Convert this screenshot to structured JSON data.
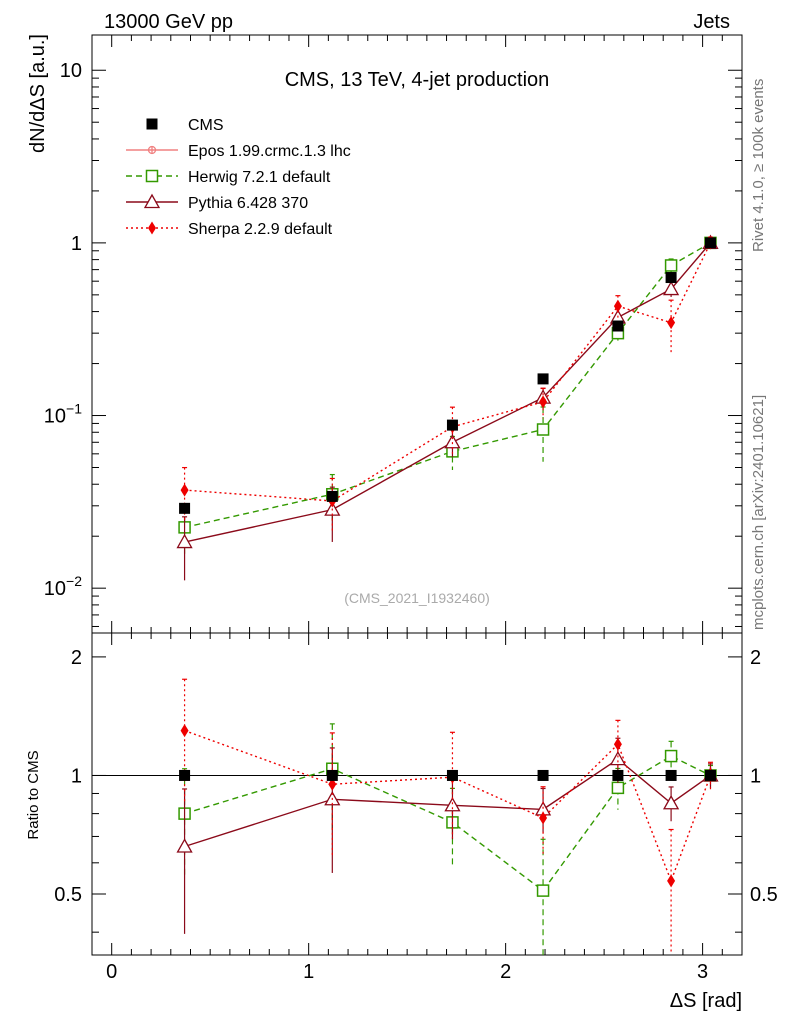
{
  "header": {
    "left": "13000 GeV pp",
    "right": "Jets"
  },
  "side": {
    "rivet": "Rivet 4.1.0, ≥ 100k events",
    "mcplots": "mcplots.cern.ch [arXiv:2401.10621]"
  },
  "chart_data": {
    "type": "scatter",
    "title": "CMS, 13 TeV, 4-jet production",
    "watermark": "(CMS_2021_I1932460)",
    "xlabel": "ΔS [rad]",
    "ylabel_main": "dN/dΔS [a.u.]",
    "ylabel_ratio": "Ratio to CMS",
    "xlim": [
      -0.1,
      3.2
    ],
    "ylim_main": [
      0.0055,
      16
    ],
    "ylim_ratio": [
      0.35,
      2.3
    ],
    "yscale_main": "log",
    "yscale_ratio": "log",
    "x_ticks": [
      "0",
      "1",
      "2",
      "3"
    ],
    "ratio_ticks": [
      "0.5",
      "1",
      "2"
    ],
    "main_ticks": [
      {
        "v": 0.01,
        "base": "10",
        "exp": "−2"
      },
      {
        "v": 0.1,
        "base": "10",
        "exp": "−1"
      },
      {
        "v": 1,
        "base": "1",
        "exp": ""
      },
      {
        "v": 10,
        "base": "10",
        "exp": ""
      }
    ],
    "x": [
      0.37,
      1.12,
      1.73,
      2.19,
      2.57,
      2.84,
      3.04
    ],
    "series": [
      {
        "name": "CMS",
        "color": "#000000",
        "marker": "square-filled",
        "style": "none",
        "values": [
          0.029,
          0.034,
          0.088,
          0.163,
          0.33,
          0.63,
          1.0
        ],
        "ratio": [
          1,
          1,
          1,
          1,
          1,
          1,
          1
        ],
        "err": [
          0,
          0,
          0,
          0,
          0,
          0,
          0
        ]
      },
      {
        "name": "Epos 1.99.crmc.1.3 lhc",
        "color": "#f08080",
        "marker": "cross",
        "style": "solid",
        "values": [],
        "ratio": [],
        "err": []
      },
      {
        "name": "Herwig 7.2.1 default",
        "color": "#339900",
        "marker": "square-open",
        "style": "dashed",
        "values": [
          0.0225,
          0.035,
          0.062,
          0.083,
          0.3,
          0.74,
          1.0
        ],
        "ratio": [
          0.8,
          1.04,
          0.76,
          0.51,
          0.93,
          1.12,
          1.0
        ],
        "err": [
          0.3,
          0.3,
          0.22,
          0.35,
          0.12,
          0.09,
          0.06
        ]
      },
      {
        "name": "Pythia 6.428 370",
        "color": "#8b0a1a",
        "marker": "triangle-open",
        "style": "solid",
        "values": [
          0.0185,
          0.0285,
          0.07,
          0.127,
          0.37,
          0.54,
          1.0
        ],
        "ratio": [
          0.66,
          0.87,
          0.84,
          0.82,
          1.1,
          0.85,
          1.0
        ],
        "err": [
          0.4,
          0.35,
          0.18,
          0.13,
          0.13,
          0.1,
          0.07
        ]
      },
      {
        "name": "Sherpa 2.2.9 default",
        "color": "#ee0000",
        "marker": "diamond-filled",
        "style": "dotted",
        "values": [
          0.037,
          0.032,
          0.086,
          0.12,
          0.43,
          0.345,
          1.0
        ],
        "ratio": [
          1.3,
          0.95,
          0.99,
          0.78,
          1.2,
          0.54,
          1.0
        ],
        "err": [
          0.35,
          0.35,
          0.3,
          0.2,
          0.15,
          0.35,
          0.08
        ]
      }
    ]
  }
}
